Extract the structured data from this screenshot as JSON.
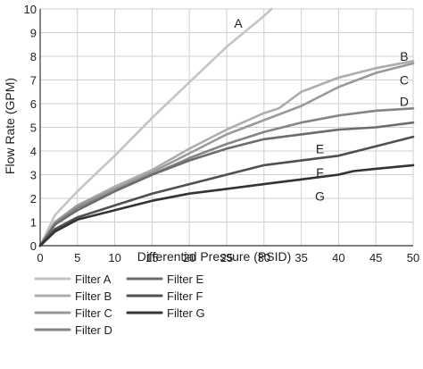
{
  "chart_data": {
    "type": "line",
    "title": "",
    "xlabel": "Differential Pressure (PSID)",
    "ylabel": "Flow Rate (GPM)",
    "xlim": [
      0,
      50
    ],
    "ylim": [
      0,
      10
    ],
    "xticks": [
      0,
      5,
      10,
      15,
      20,
      25,
      30,
      35,
      40,
      45,
      50
    ],
    "yticks": [
      0,
      1,
      2,
      3,
      4,
      5,
      6,
      7,
      8,
      9,
      10
    ],
    "grid": true,
    "legend_position": "bottom",
    "series": [
      {
        "name": "Filter A",
        "tag": "A",
        "color": "#c4c4c4",
        "x": [
          0,
          2,
          5,
          10,
          15,
          20,
          25,
          30,
          31
        ],
        "y": [
          0,
          1.3,
          2.3,
          3.8,
          5.4,
          6.9,
          8.4,
          9.7,
          10
        ]
      },
      {
        "name": "Filter B",
        "tag": "B",
        "color": "#adadad",
        "x": [
          0,
          2,
          5,
          10,
          15,
          20,
          25,
          30,
          32,
          35,
          40,
          45,
          50
        ],
        "y": [
          0,
          1.0,
          1.7,
          2.5,
          3.2,
          4.1,
          4.9,
          5.6,
          5.8,
          6.5,
          7.1,
          7.5,
          7.8
        ]
      },
      {
        "name": "Filter C",
        "tag": "C",
        "color": "#999999",
        "x": [
          0,
          2,
          5,
          10,
          15,
          20,
          25,
          30,
          35,
          40,
          45,
          50
        ],
        "y": [
          0,
          1.0,
          1.7,
          2.4,
          3.1,
          3.9,
          4.7,
          5.3,
          5.9,
          6.7,
          7.3,
          7.7
        ]
      },
      {
        "name": "Filter D",
        "tag": "D",
        "color": "#858585",
        "x": [
          0,
          2,
          5,
          10,
          15,
          20,
          25,
          30,
          35,
          40,
          45,
          50
        ],
        "y": [
          0,
          0.9,
          1.6,
          2.3,
          3.0,
          3.7,
          4.3,
          4.8,
          5.2,
          5.5,
          5.7,
          5.8
        ]
      },
      {
        "name": "Filter E",
        "tag": "E",
        "color": "#6c6c6c",
        "x": [
          0,
          2,
          5,
          10,
          15,
          20,
          25,
          30,
          35,
          40,
          45,
          50
        ],
        "y": [
          0,
          0.9,
          1.5,
          2.3,
          3.0,
          3.6,
          4.1,
          4.5,
          4.7,
          4.9,
          5.0,
          5.2
        ]
      },
      {
        "name": "Filter F",
        "tag": "F",
        "color": "#505050",
        "x": [
          0,
          2,
          5,
          10,
          15,
          20,
          25,
          30,
          35,
          40,
          45,
          50
        ],
        "y": [
          0,
          0.7,
          1.2,
          1.7,
          2.2,
          2.6,
          3.0,
          3.4,
          3.6,
          3.8,
          4.2,
          4.6
        ]
      },
      {
        "name": "Filter G",
        "tag": "G",
        "color": "#333333",
        "x": [
          0,
          2,
          5,
          10,
          15,
          20,
          25,
          30,
          35,
          40,
          42,
          45,
          50
        ],
        "y": [
          0,
          0.6,
          1.1,
          1.5,
          1.9,
          2.2,
          2.4,
          2.6,
          2.8,
          3.0,
          3.15,
          3.25,
          3.4
        ]
      }
    ]
  }
}
